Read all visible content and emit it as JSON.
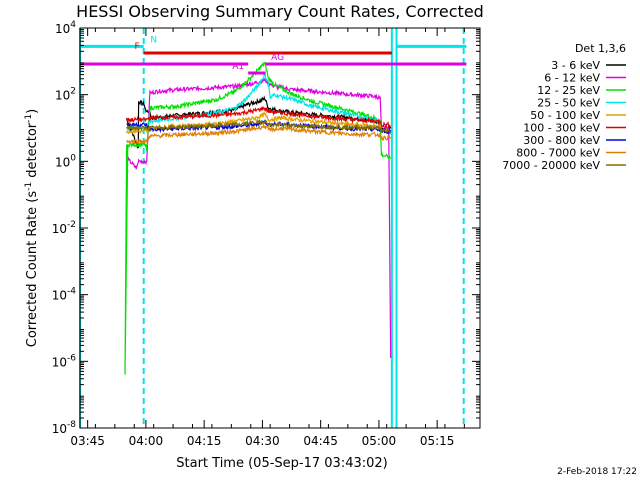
{
  "chart_data": {
    "type": "line",
    "title": "HESSI Observing Summary Count Rates, Corrected",
    "xlabel": "Start Time (05-Sep-17 03:43:02)",
    "ylabel_parts": [
      "Corrected Count Rate (s",
      "-1",
      " detector",
      "-1",
      ")"
    ],
    "x_units": "minutes since 03:43:02",
    "xlim": [
      0,
      103
    ],
    "ylim_log10": [
      -8,
      4
    ],
    "y_scale": "log",
    "x_ticks": [
      {
        "pos": 1.97,
        "label": "03:45"
      },
      {
        "pos": 16.97,
        "label": "04:00"
      },
      {
        "pos": 31.97,
        "label": "04:15"
      },
      {
        "pos": 46.97,
        "label": "04:30"
      },
      {
        "pos": 61.97,
        "label": "04:45"
      },
      {
        "pos": 76.97,
        "label": "05:00"
      },
      {
        "pos": 91.97,
        "label": "05:15"
      }
    ],
    "y_ticks": [
      {
        "exp": 4,
        "base": "10",
        "sup": "4"
      },
      {
        "exp": 2,
        "base": "10",
        "sup": "2"
      },
      {
        "exp": 0,
        "base": "10",
        "sup": "0"
      },
      {
        "exp": -2,
        "base": "10",
        "sup": "-2"
      },
      {
        "exp": -4,
        "base": "10",
        "sup": "-4"
      },
      {
        "exp": -6,
        "base": "10",
        "sup": "-6"
      },
      {
        "exp": -8,
        "base": "10",
        "sup": "-8"
      }
    ],
    "legend": {
      "title": "Det 1,3,6",
      "placement": "right"
    },
    "series": [
      {
        "name": "3 - 6 keV",
        "color": "#000000",
        "points": [
          [
            12,
            1.3
          ],
          [
            15,
            0.4
          ],
          [
            15.1,
            1.8
          ],
          [
            16.5,
            1.7
          ],
          [
            17,
            1.5
          ],
          [
            18,
            1.5
          ],
          [
            18.2,
            1.3
          ],
          [
            25,
            1.38
          ],
          [
            35,
            1.48
          ],
          [
            40,
            1.55
          ],
          [
            43,
            1.7
          ],
          [
            46,
            1.8
          ],
          [
            47.6,
            1.88
          ],
          [
            48.5,
            1.6
          ],
          [
            52,
            1.5
          ],
          [
            60,
            1.4
          ],
          [
            70,
            1.3
          ],
          [
            76,
            1.2
          ],
          [
            77.3,
            1.15
          ],
          [
            77.6,
            1.0
          ],
          [
            80,
            1.0
          ]
        ]
      },
      {
        "name": "6 - 12 keV",
        "color": "#e000e0",
        "points": [
          [
            12,
            0.1
          ],
          [
            14.5,
            -0.2
          ],
          [
            15.1,
            0.0
          ],
          [
            17,
            0.0
          ],
          [
            17.2,
            0.0
          ],
          [
            18,
            2.1
          ],
          [
            18.3,
            2.05
          ],
          [
            20,
            2.1
          ],
          [
            25,
            2.15
          ],
          [
            30,
            2.18
          ],
          [
            40,
            2.25
          ],
          [
            45,
            2.35
          ],
          [
            47.6,
            2.45
          ],
          [
            48.5,
            2.35
          ],
          [
            50,
            2.25
          ],
          [
            55,
            2.15
          ],
          [
            60,
            2.1
          ],
          [
            70,
            2.0
          ],
          [
            76,
            1.95
          ],
          [
            77.3,
            1.9
          ],
          [
            77.6,
            1.0
          ],
          [
            79.5,
            1.0
          ],
          [
            80,
            -5.9
          ]
        ]
      },
      {
        "name": "12 - 25 keV",
        "color": "#00e000",
        "points": [
          [
            12,
            0.5
          ],
          [
            11.6,
            -6.4
          ],
          [
            12.3,
            0.5
          ],
          [
            15,
            0.5
          ],
          [
            17,
            0.5
          ],
          [
            17.2,
            0.3
          ],
          [
            18,
            1.6
          ],
          [
            25,
            1.65
          ],
          [
            35,
            1.85
          ],
          [
            40,
            2.1
          ],
          [
            43,
            2.4
          ],
          [
            45.5,
            2.7
          ],
          [
            47.6,
            2.95
          ],
          [
            48.5,
            2.5
          ],
          [
            50,
            2.3
          ],
          [
            55,
            2.0
          ],
          [
            60,
            1.8
          ],
          [
            70,
            1.5
          ],
          [
            76,
            1.3
          ],
          [
            77.3,
            1.2
          ],
          [
            77.6,
            0.2
          ],
          [
            80,
            0.1
          ]
        ]
      },
      {
        "name": "25 - 50 keV",
        "color": "#00e5e5",
        "points": [
          [
            12,
            1.0
          ],
          [
            17,
            1.0
          ],
          [
            18,
            1.2
          ],
          [
            25,
            1.3
          ],
          [
            35,
            1.45
          ],
          [
            40,
            1.6
          ],
          [
            43,
            1.9
          ],
          [
            46,
            2.3
          ],
          [
            47.6,
            2.6
          ],
          [
            48.5,
            2.35
          ],
          [
            49,
            1.9
          ],
          [
            50,
            2.0
          ],
          [
            55,
            1.85
          ],
          [
            60,
            1.65
          ],
          [
            70,
            1.4
          ],
          [
            76,
            1.25
          ],
          [
            77.3,
            1.15
          ],
          [
            77.6,
            0.9
          ],
          [
            80,
            0.9
          ]
        ]
      },
      {
        "name": "50 - 100 keV",
        "color": "#e0a000",
        "points": [
          [
            12,
            0.9
          ],
          [
            17,
            0.9
          ],
          [
            18,
            1.0
          ],
          [
            25,
            1.05
          ],
          [
            35,
            1.12
          ],
          [
            40,
            1.2
          ],
          [
            45,
            1.3
          ],
          [
            47.6,
            1.4
          ],
          [
            48.5,
            1.25
          ],
          [
            52,
            1.3
          ],
          [
            60,
            1.2
          ],
          [
            70,
            1.1
          ],
          [
            77.3,
            1.05
          ],
          [
            77.6,
            0.9
          ],
          [
            80,
            0.9
          ]
        ]
      },
      {
        "name": "100 - 300 keV",
        "color": "#e00000",
        "points": [
          [
            12,
            1.25
          ],
          [
            17,
            1.25
          ],
          [
            18,
            1.3
          ],
          [
            25,
            1.33
          ],
          [
            35,
            1.38
          ],
          [
            40,
            1.42
          ],
          [
            45,
            1.52
          ],
          [
            47.6,
            1.6
          ],
          [
            48.5,
            1.5
          ],
          [
            52,
            1.45
          ],
          [
            60,
            1.35
          ],
          [
            70,
            1.25
          ],
          [
            77.3,
            1.2
          ],
          [
            77.6,
            1.1
          ],
          [
            80,
            1.1
          ]
        ]
      },
      {
        "name": "300 - 800 keV",
        "color": "#0000e0",
        "points": [
          [
            12,
            1.1
          ],
          [
            17,
            1.1
          ],
          [
            18,
            0.95
          ],
          [
            25,
            0.98
          ],
          [
            35,
            1.02
          ],
          [
            40,
            1.05
          ],
          [
            45,
            1.1
          ],
          [
            47.6,
            1.2
          ],
          [
            48.5,
            1.1
          ],
          [
            52,
            1.12
          ],
          [
            60,
            1.05
          ],
          [
            70,
            0.98
          ],
          [
            77.3,
            0.95
          ],
          [
            77.6,
            0.9
          ],
          [
            80,
            0.9
          ]
        ]
      },
      {
        "name": "800 - 7000 keV",
        "color": "#e08000",
        "points": [
          [
            12,
            0.6
          ],
          [
            17,
            0.6
          ],
          [
            18,
            0.75
          ],
          [
            25,
            0.8
          ],
          [
            35,
            0.85
          ],
          [
            40,
            0.9
          ],
          [
            45,
            0.98
          ],
          [
            47.6,
            1.05
          ],
          [
            48.5,
            0.95
          ],
          [
            52,
            0.98
          ],
          [
            60,
            0.9
          ],
          [
            70,
            0.82
          ],
          [
            77.3,
            0.8
          ],
          [
            77.6,
            0.7
          ],
          [
            80,
            0.7
          ]
        ]
      },
      {
        "name": "7000 - 20000 keV",
        "color": "#807000",
        "points": [
          [
            12,
            1.0
          ],
          [
            17,
            1.0
          ],
          [
            18,
            1.0
          ],
          [
            30,
            1.05
          ],
          [
            40,
            1.1
          ],
          [
            47.6,
            1.2
          ],
          [
            48.5,
            1.1
          ],
          [
            60,
            1.05
          ],
          [
            77.3,
            1.0
          ],
          [
            77.6,
            0.9
          ],
          [
            80,
            0.9
          ]
        ]
      }
    ],
    "flag_bars": [
      {
        "label": "N",
        "color": "#00e5e5",
        "y_log10": 3.45,
        "segments": [
          [
            0,
            16.4
          ],
          [
            81.5,
            99.5
          ]
        ]
      },
      {
        "label": "F",
        "color": "#e00000",
        "y_log10": 3.25,
        "segments": [
          [
            16.4,
            80.3
          ]
        ]
      },
      {
        "label": "AG",
        "color": "#e000e0",
        "y_log10": 2.92,
        "segments": [
          [
            47.8,
            99.5
          ]
        ]
      },
      {
        "label": "",
        "color": "#e000e0",
        "y_log10": 2.92,
        "segments": [
          [
            0,
            43.3
          ]
        ]
      },
      {
        "label": "A1",
        "color": "#e000e0",
        "y_log10": 2.65,
        "segments": [
          [
            43.3,
            47.8
          ]
        ]
      }
    ],
    "vlines": [
      {
        "x": 0.0,
        "style": "solid",
        "color": "#00e5e5"
      },
      {
        "x": 16.4,
        "style": "dashed",
        "color": "#00e5e5"
      },
      {
        "x": 80.3,
        "style": "solid",
        "color": "#00e5e5"
      },
      {
        "x": 81.5,
        "style": "solid",
        "color": "#00e5e5"
      },
      {
        "x": 98.8,
        "style": "dashed",
        "color": "#00e5e5"
      }
    ],
    "timestamp": "2-Feb-2018 17:22"
  }
}
